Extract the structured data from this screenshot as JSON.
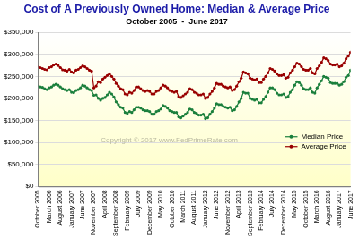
{
  "chart_data": {
    "type": "line",
    "title": "Cost of A Previously Owned Home: Median & Average Price",
    "subtitle": "October 2005  -  June 2017",
    "annotation": "Copyright © 2017 www.FedPrimeRate.com",
    "categories": [
      "October 2005",
      null,
      null,
      null,
      null,
      "March 2006",
      null,
      null,
      null,
      null,
      "August 2006",
      null,
      null,
      null,
      null,
      "January 2007",
      null,
      null,
      null,
      null,
      "June 2007",
      null,
      null,
      null,
      null,
      "November 2007",
      null,
      null,
      null,
      null,
      "April 2008",
      null,
      null,
      null,
      null,
      "September 2008",
      null,
      null,
      null,
      null,
      "February 2009",
      null,
      null,
      null,
      null,
      "July 2009",
      null,
      null,
      null,
      null,
      "December 2009",
      null,
      null,
      null,
      null,
      "May 2010",
      null,
      null,
      null,
      null,
      "October 2010",
      null,
      null,
      null,
      null,
      "March 2011",
      null,
      null,
      null,
      null,
      "August 2011",
      null,
      null,
      null,
      null,
      "January 2012",
      null,
      null,
      null,
      null,
      "June 2012",
      null,
      null,
      null,
      null,
      "November 2012",
      null,
      null,
      null,
      null,
      "April 2013",
      null,
      null,
      null,
      null,
      "September 2013",
      null,
      null,
      null,
      null,
      "February 2014",
      null,
      null,
      null,
      null,
      "July 2014",
      null,
      null,
      null,
      null,
      "December 2014",
      null,
      null,
      null,
      null,
      "May 2015",
      null,
      null,
      null,
      null,
      "October 2015",
      null,
      null,
      null,
      null,
      "March 2016",
      null,
      null,
      null,
      null,
      "August 2016",
      null,
      null,
      null,
      null,
      "January 2017",
      null,
      null,
      null,
      null,
      "June 2017"
    ],
    "series": [
      {
        "name": "Median Price",
        "color": "#1a7f3c",
        "marker": "circle",
        "line_style": "solid",
        "values": [
          228000,
          226000,
          225000,
          222000,
          220000,
          224000,
          226000,
          230000,
          232000,
          230000,
          226000,
          222000,
          220000,
          218000,
          220000,
          214000,
          213000,
          218000,
          220000,
          224000,
          230000,
          228000,
          224000,
          220000,
          218000,
          207000,
          208000,
          200000,
          196000,
          200000,
          202000,
          208000,
          214000,
          210000,
          203000,
          192000,
          186000,
          180000,
          178000,
          168000,
          166000,
          170000,
          168000,
          174000,
          180000,
          180000,
          178000,
          174000,
          172000,
          172000,
          170000,
          164000,
          164000,
          170000,
          172000,
          176000,
          184000,
          182000,
          178000,
          172000,
          170000,
          168000,
          168000,
          158000,
          156000,
          160000,
          164000,
          168000,
          176000,
          174000,
          168000,
          166000,
          162000,
          162000,
          164000,
          154000,
          156000,
          164000,
          170000,
          178000,
          188000,
          186000,
          186000,
          182000,
          180000,
          178000,
          180000,
          172000,
          174000,
          182000,
          192000,
          200000,
          214000,
          212000,
          212000,
          200000,
          198000,
          196000,
          198000,
          190000,
          190000,
          198000,
          204000,
          214000,
          224000,
          224000,
          220000,
          212000,
          208000,
          208000,
          210000,
          202000,
          204000,
          214000,
          220000,
          230000,
          238000,
          236000,
          230000,
          222000,
          220000,
          220000,
          224000,
          214000,
          212000,
          224000,
          232000,
          240000,
          250000,
          248000,
          246000,
          236000,
          234000,
          234000,
          234000,
          230000,
          232000,
          238000,
          248000,
          252000,
          264000
        ]
      },
      {
        "name": "Average Price",
        "color": "#990000",
        "marker": "circle",
        "line_style": "solid",
        "values": [
          272000,
          270000,
          268000,
          266000,
          265000,
          270000,
          272000,
          276000,
          278000,
          275000,
          270000,
          265000,
          264000,
          262000,
          266000,
          260000,
          258000,
          264000,
          266000,
          270000,
          274000,
          272000,
          268000,
          264000,
          262000,
          224000,
          228000,
          238000,
          236000,
          244000,
          248000,
          252000,
          256000,
          250000,
          244000,
          234000,
          228000,
          222000,
          220000,
          210000,
          208000,
          214000,
          212000,
          218000,
          226000,
          226000,
          222000,
          218000,
          216000,
          218000,
          216000,
          210000,
          210000,
          216000,
          218000,
          224000,
          230000,
          228000,
          224000,
          218000,
          216000,
          214000,
          216000,
          204000,
          202000,
          206000,
          210000,
          214000,
          222000,
          220000,
          214000,
          212000,
          208000,
          208000,
          210000,
          200000,
          202000,
          210000,
          216000,
          224000,
          234000,
          232000,
          232000,
          228000,
          226000,
          224000,
          226000,
          218000,
          220000,
          228000,
          238000,
          246000,
          260000,
          258000,
          256000,
          246000,
          244000,
          242000,
          244000,
          236000,
          236000,
          244000,
          250000,
          258000,
          268000,
          266000,
          262000,
          256000,
          252000,
          252000,
          254000,
          246000,
          248000,
          258000,
          264000,
          272000,
          280000,
          278000,
          272000,
          266000,
          264000,
          264000,
          268000,
          258000,
          256000,
          268000,
          274000,
          282000,
          292000,
          290000,
          286000,
          278000,
          276000,
          276000,
          278000,
          272000,
          274000,
          280000,
          290000,
          296000,
          305000
        ]
      }
    ],
    "ylim": [
      0,
      350000
    ],
    "yticks": [
      {
        "value": 0,
        "label": "$0"
      },
      {
        "value": 50000,
        "label": "$50,000"
      },
      {
        "value": 100000,
        "label": "$100,000"
      },
      {
        "value": 150000,
        "label": "$150,000"
      },
      {
        "value": 200000,
        "label": "$200,000"
      },
      {
        "value": 250000,
        "label": "$250,000"
      },
      {
        "value": 300000,
        "label": "$300,000"
      },
      {
        "value": 350000,
        "label": "$350,000"
      }
    ],
    "grid": true,
    "legend": "lower right"
  }
}
